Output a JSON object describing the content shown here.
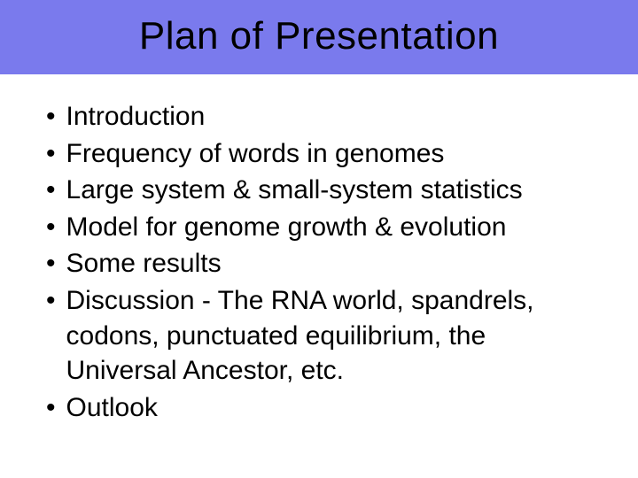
{
  "slide": {
    "title": "Plan of Presentation",
    "header_bg_color": "#7a7aed",
    "title_color": "#000000",
    "title_fontsize": 44,
    "body_bg_color": "#ffffff",
    "bullet_fontsize": 30,
    "bullet_color": "#000000",
    "bullets": [
      "Introduction",
      "Frequency of words in genomes",
      "Large system & small-system statistics",
      "Model for genome growth & evolution",
      "Some results",
      "Discussion - The RNA world, spandrels, codons, punctuated equilibrium, the Universal Ancestor, etc.",
      "Outlook"
    ]
  }
}
